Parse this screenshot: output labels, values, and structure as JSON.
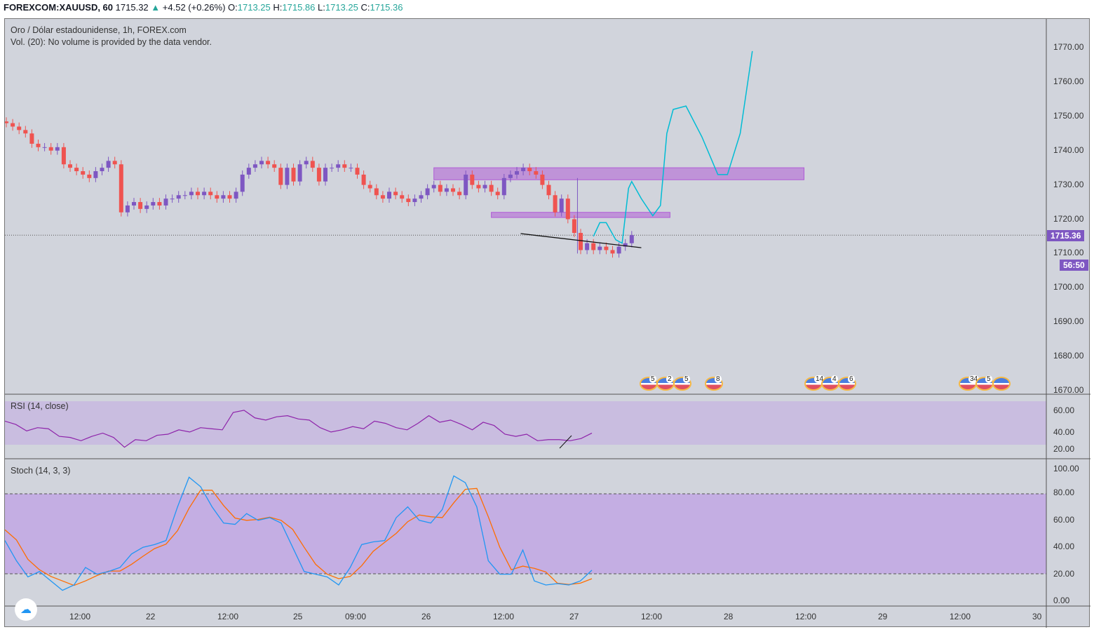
{
  "header": {
    "symbol": "FOREXCOM:XAUUSD, 60",
    "last": "1715.32",
    "change": "+4.52 (+0.26%)",
    "o_label": "O:",
    "o": "1713.25",
    "h_label": "H:",
    "h": "1715.86",
    "l_label": "L:",
    "l": "1713.25",
    "c_label": "C:",
    "c": "1715.36"
  },
  "legend": {
    "title": "Oro / Dólar estadounidense, 1h, FOREX.com",
    "volume": "Vol. (20): No volume is provided by the data vendor."
  },
  "price_axis": [
    "1770.00",
    "1760.00",
    "1750.00",
    "1740.00",
    "1730.00",
    "1720.00",
    "1710.00",
    "1700.00",
    "1690.00",
    "1680.00",
    "1670.00"
  ],
  "price_tag": "1715.36",
  "countdown": "56:50",
  "rsi": {
    "label": "RSI (14, close)",
    "axis": [
      "60.00",
      "40.00",
      "20.00"
    ],
    "values": [
      52,
      49,
      43,
      46,
      45,
      38,
      37,
      34,
      38,
      41,
      37,
      28,
      35,
      34,
      39,
      40,
      44,
      42,
      46,
      45,
      44,
      60,
      62,
      55,
      53,
      56,
      57,
      54,
      53,
      46,
      42,
      44,
      47,
      45,
      52,
      50,
      46,
      44,
      50,
      57,
      51,
      53,
      49,
      44,
      51,
      48,
      40,
      38,
      40,
      34,
      35,
      35,
      34,
      36,
      41
    ]
  },
  "stoch": {
    "label": "Stoch (14, 3, 3)",
    "axis": [
      "100.00",
      "80.00",
      "60.00",
      "40.00",
      "20.00",
      "0.00"
    ],
    "k": [
      45,
      30,
      18,
      22,
      15,
      8,
      12,
      25,
      20,
      22,
      25,
      35,
      40,
      42,
      45,
      70,
      92,
      85,
      70,
      58,
      57,
      65,
      60,
      62,
      58,
      40,
      22,
      20,
      18,
      12,
      25,
      42,
      44,
      45,
      62,
      70,
      60,
      58,
      68,
      93,
      88,
      70,
      30,
      20,
      20,
      38,
      15,
      12,
      13,
      12,
      15,
      23
    ]
  },
  "time_axis": [
    "12:00",
    "22",
    "12:00",
    "25",
    "09:00",
    "26",
    "12:00",
    "27",
    "12:00",
    "28",
    "12:00",
    "29",
    "12:00",
    "30"
  ],
  "events": [
    {
      "n": "5"
    },
    {
      "n": "2"
    },
    {
      "n": "5"
    },
    {
      "n": "8"
    },
    {
      "n": "14"
    },
    {
      "n": "4"
    },
    {
      "n": "6"
    },
    {
      "n": "34"
    },
    {
      "n": "5"
    },
    {
      "n": ""
    }
  ],
  "closes": [
    1748,
    1747,
    1746,
    1745,
    1742,
    1741,
    1741,
    1740,
    1741,
    1736,
    1735,
    1734,
    1733,
    1732,
    1734,
    1735,
    1737,
    1736,
    1722,
    1724,
    1725,
    1723,
    1724,
    1725,
    1724,
    1726,
    1726,
    1727,
    1727,
    1728,
    1727,
    1728,
    1727,
    1726,
    1727,
    1726,
    1728,
    1733,
    1735,
    1736,
    1737,
    1736,
    1735,
    1730,
    1735,
    1731,
    1736,
    1737,
    1735,
    1731,
    1735,
    1735,
    1736,
    1735,
    1735,
    1733,
    1730,
    1729,
    1727,
    1726,
    1728,
    1727,
    1726,
    1725,
    1726,
    1727,
    1729,
    1730,
    1728,
    1729,
    1728,
    1727,
    1733,
    1730,
    1729,
    1730,
    1728,
    1727,
    1732,
    1733,
    1734,
    1735,
    1734,
    1733,
    1730,
    1727,
    1722,
    1726,
    1720,
    1716,
    1711,
    1713,
    1711,
    1712,
    1711,
    1710,
    1712,
    1713,
    1715.36
  ],
  "zones": [
    {
      "from_bar": 67,
      "to_bar": 125,
      "top": 1735,
      "bottom": 1731.5
    },
    {
      "from_bar": 76,
      "to_bar": 104,
      "top": 1722,
      "bottom": 1720.5
    }
  ],
  "projection": [
    [
      92,
      1715
    ],
    [
      93,
      1719
    ],
    [
      94,
      1719
    ],
    [
      95.5,
      1714
    ],
    [
      96.5,
      1713
    ],
    [
      97.5,
      1729
    ],
    [
      98,
      1731
    ],
    [
      99.5,
      1726
    ],
    [
      101.3,
      1721
    ],
    [
      102.5,
      1724
    ],
    [
      103.5,
      1745
    ],
    [
      104.5,
      1752
    ],
    [
      106.5,
      1753
    ],
    [
      109,
      1744
    ],
    [
      111.5,
      1733
    ],
    [
      113,
      1733
    ],
    [
      115,
      1745
    ],
    [
      116.9,
      1769
    ]
  ],
  "trendline": [
    [
      80.6,
      1715.8
    ],
    [
      99.5,
      1711.7
    ]
  ],
  "colors": {
    "up": "#26a69a",
    "down": "#ef5350",
    "bull_candle": "#7e57c2",
    "zone": "#b05cd6",
    "projection": "#00bcd4"
  }
}
